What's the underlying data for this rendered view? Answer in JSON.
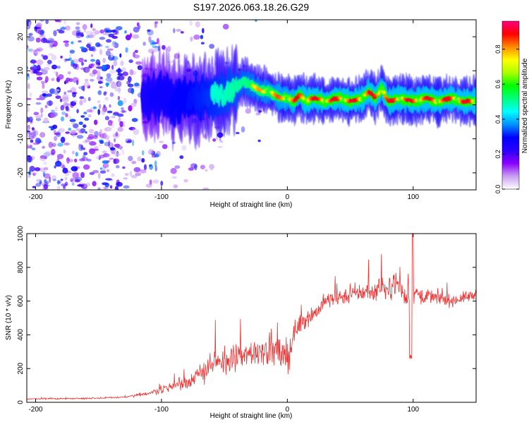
{
  "title": "S197.2026.063.18.26.G29",
  "colors": {
    "snr_line": "#ee3333",
    "axis": "#000000",
    "background": "#ffffff"
  },
  "chart_data": [
    {
      "type": "heatmap",
      "xlabel": "Height of straight line (km)",
      "ylabel": "Frequency (Hz)",
      "xlim": [
        -207,
        150
      ],
      "ylim": [
        -25,
        25
      ],
      "x_ticks": [
        -200,
        -100,
        0,
        100
      ],
      "y_ticks": [
        -20,
        -10,
        0,
        10,
        20
      ],
      "x_tick_labels": [
        "-200",
        "-100",
        "0",
        "100"
      ],
      "y_tick_labels": [
        "-20",
        "-10",
        "0",
        "10",
        "20"
      ],
      "ridge": {
        "x": [
          -110,
          -100,
          -90,
          -80,
          -70,
          -60,
          -50,
          -40,
          -35,
          -30,
          -25,
          -20,
          -15,
          -10,
          -5,
          0,
          5,
          10,
          15,
          20,
          30,
          40,
          50,
          60,
          65,
          70,
          75,
          80,
          90,
          100,
          110,
          120,
          130,
          140,
          150
        ],
        "freq": [
          2,
          3,
          1,
          2,
          2,
          3,
          3,
          5,
          7,
          6,
          5,
          4,
          4,
          3,
          2,
          2,
          1,
          3,
          1,
          2,
          1,
          2,
          1,
          2,
          4,
          2,
          5,
          1,
          2,
          1,
          2,
          1,
          2,
          1,
          1
        ]
      },
      "colorbar": {
        "label": "Normalized spectral amplitude",
        "range": [
          0,
          0.96
        ],
        "ticks": [
          0.0,
          0.2,
          0.4,
          0.6,
          0.8
        ],
        "tick_labels": [
          "0.0",
          "0.2",
          "0.4",
          "0.6",
          "0.8"
        ],
        "stops": [
          "#ffffff",
          "#c8a0f0",
          "#8c00ff",
          "#2a00ff",
          "#0000ff",
          "#0090ff",
          "#00ffff",
          "#00ff7f",
          "#00ff00",
          "#aaff00",
          "#ffff00",
          "#ff8c00",
          "#ff0000",
          "#ff0080"
        ]
      }
    },
    {
      "type": "line",
      "xlabel": "Height of straight line (km)",
      "ylabel": "SNR (10 * v/v)",
      "xlim": [
        -207,
        150
      ],
      "ylim": [
        0,
        1000
      ],
      "x_ticks": [
        -200,
        -100,
        0,
        100
      ],
      "y_ticks": [
        0,
        200,
        400,
        600,
        800,
        1000
      ],
      "x_tick_labels": [
        "-200",
        "-100",
        "0",
        "100"
      ],
      "y_tick_labels": [
        "0",
        "200",
        "400",
        "600",
        "800",
        "1000"
      ],
      "series": [
        {
          "name": "SNR",
          "x": [
            -207,
            -180,
            -150,
            -130,
            -120,
            -110,
            -100,
            -90,
            -80,
            -70,
            -65,
            -60,
            -55,
            -50,
            -45,
            -40,
            -35,
            -30,
            -25,
            -20,
            -15,
            -10,
            -5,
            0,
            5,
            10,
            15,
            20,
            25,
            30,
            40,
            50,
            60,
            70,
            75,
            80,
            85,
            90,
            95,
            100,
            110,
            120,
            130,
            140,
            150
          ],
          "values": [
            20,
            22,
            25,
            30,
            40,
            55,
            75,
            100,
            120,
            160,
            200,
            230,
            220,
            240,
            250,
            260,
            270,
            290,
            300,
            320,
            310,
            300,
            280,
            250,
            400,
            470,
            500,
            520,
            550,
            600,
            620,
            640,
            650,
            660,
            700,
            650,
            720,
            680,
            600,
            650,
            630,
            620,
            600,
            620,
            640
          ],
          "noise": [
            8,
            8,
            8,
            10,
            15,
            25,
            40,
            60,
            80,
            100,
            130,
            150,
            140,
            150,
            150,
            160,
            160,
            170,
            170,
            180,
            170,
            160,
            170,
            180,
            120,
            110,
            100,
            100,
            90,
            90,
            90,
            90,
            100,
            110,
            120,
            110,
            130,
            110,
            90,
            120,
            80,
            70,
            60,
            60,
            60
          ]
        }
      ]
    }
  ]
}
